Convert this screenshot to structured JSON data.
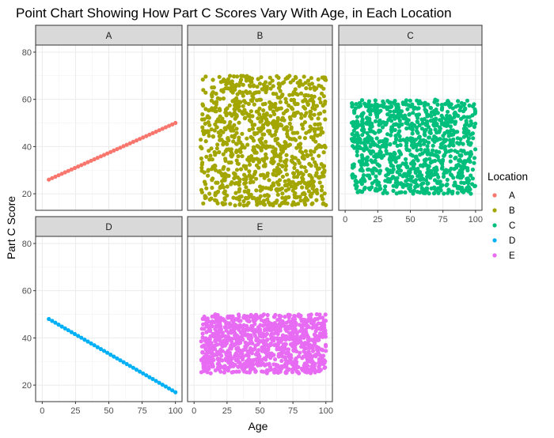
{
  "chart_data": {
    "type": "scatter",
    "title": "Point Chart Showing How Part C Scores Vary With Age, in Each Location",
    "xlabel": "Age",
    "ylabel": "Part C Score",
    "xlim": [
      0,
      100
    ],
    "ylim": [
      13,
      83
    ],
    "x_ticks": [
      0,
      25,
      50,
      75,
      100
    ],
    "y_ticks": [
      20,
      40,
      60,
      80
    ],
    "grid": true,
    "legend_title": "Location",
    "legend_position": "right",
    "facets": [
      {
        "label": "A",
        "color": "#F8766D",
        "pattern": "line",
        "x_range": [
          5,
          100
        ],
        "y_range": [
          26,
          50
        ]
      },
      {
        "label": "B",
        "color": "#A3A500",
        "pattern": "cloud",
        "x_range": [
          5,
          100
        ],
        "y_range": [
          15,
          70
        ]
      },
      {
        "label": "C",
        "color": "#00BF7D",
        "pattern": "cloud",
        "x_range": [
          5,
          100
        ],
        "y_range": [
          20,
          60
        ]
      },
      {
        "label": "D",
        "color": "#00B0F6",
        "pattern": "line",
        "x_range": [
          5,
          100
        ],
        "y_range": [
          48,
          17
        ]
      },
      {
        "label": "E",
        "color": "#E76BF3",
        "pattern": "cloud",
        "x_range": [
          5,
          100
        ],
        "y_range": [
          25,
          50
        ]
      }
    ]
  }
}
